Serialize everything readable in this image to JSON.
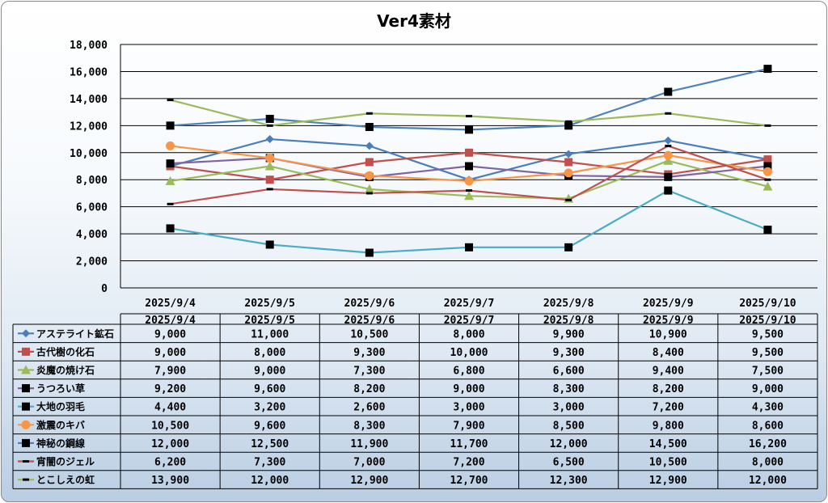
{
  "chart_data": {
    "type": "line",
    "title": "Ver4素材",
    "categories": [
      "2025/9/4",
      "2025/9/5",
      "2025/9/6",
      "2025/9/7",
      "2025/9/8",
      "2025/9/9",
      "2025/9/10"
    ],
    "ylim": [
      0,
      18000
    ],
    "ytick_labels": [
      "0",
      "2,000",
      "4,000",
      "6,000",
      "8,000",
      "10,000",
      "12,000",
      "14,000",
      "16,000",
      "18,000"
    ],
    "grid": true,
    "legend": "data-table",
    "series": [
      {
        "name": "アステライト鉱石",
        "color": "#4a7ebb",
        "marker": "diamond",
        "line": true,
        "values": [
          9000,
          11000,
          10500,
          8000,
          9900,
          10900,
          9500
        ],
        "labels": [
          "9,000",
          "11,000",
          "10,500",
          "8,000",
          "9,900",
          "10,900",
          "9,500"
        ]
      },
      {
        "name": "古代樹の化石",
        "color": "#c0504d",
        "marker": "square",
        "line": true,
        "values": [
          9000,
          8000,
          9300,
          10000,
          9300,
          8400,
          9500
        ],
        "labels": [
          "9,000",
          "8,000",
          "9,300",
          "10,000",
          "9,300",
          "8,400",
          "9,500"
        ]
      },
      {
        "name": "炎魔の焼け石",
        "color": "#9bbb59",
        "marker": "triangle",
        "line": true,
        "values": [
          7900,
          9000,
          7300,
          6800,
          6600,
          9400,
          7500
        ],
        "labels": [
          "7,900",
          "9,000",
          "7,300",
          "6,800",
          "6,600",
          "9,400",
          "7,500"
        ]
      },
      {
        "name": "うつろい草",
        "color": "#8064a2",
        "marker": "square-black",
        "line": true,
        "values": [
          9200,
          9600,
          8200,
          9000,
          8300,
          8200,
          9000
        ],
        "labels": [
          "9,200",
          "9,600",
          "8,200",
          "9,000",
          "8,300",
          "8,200",
          "9,000"
        ]
      },
      {
        "name": "大地の羽毛",
        "color": "#4bacc6",
        "marker": "square-black",
        "line": true,
        "values": [
          4400,
          3200,
          2600,
          3000,
          3000,
          7200,
          4300
        ],
        "labels": [
          "4,400",
          "3,200",
          "2,600",
          "3,000",
          "3,000",
          "7,200",
          "4,300"
        ]
      },
      {
        "name": "激震のキバ",
        "color": "#f79646",
        "marker": "circle",
        "line": true,
        "values": [
          10500,
          9600,
          8300,
          7900,
          8500,
          9800,
          8600
        ],
        "labels": [
          "10,500",
          "9,600",
          "8,300",
          "7,900",
          "8,500",
          "9,800",
          "8,600"
        ]
      },
      {
        "name": "神秘の鋼線",
        "color": "#4f81bd",
        "marker": "square-black",
        "line": true,
        "values": [
          12000,
          12500,
          11900,
          11700,
          12000,
          14500,
          16200
        ],
        "labels": [
          "12,000",
          "12,500",
          "11,900",
          "11,700",
          "12,000",
          "14,500",
          "16,200"
        ]
      },
      {
        "name": "宵闇のジェル",
        "color": "#c0504d",
        "marker": "dash-black",
        "line": true,
        "values": [
          6200,
          7300,
          7000,
          7200,
          6500,
          10500,
          8000
        ],
        "labels": [
          "6,200",
          "7,300",
          "7,000",
          "7,200",
          "6,500",
          "10,500",
          "8,000"
        ]
      },
      {
        "name": "とこしえの虹",
        "color": "#9bbb59",
        "marker": "dash-black",
        "line": true,
        "values": [
          13900,
          12000,
          12900,
          12700,
          12300,
          12900,
          12000
        ],
        "labels": [
          "13,900",
          "12,000",
          "12,900",
          "12,700",
          "12,300",
          "12,900",
          "12,000"
        ]
      }
    ]
  }
}
